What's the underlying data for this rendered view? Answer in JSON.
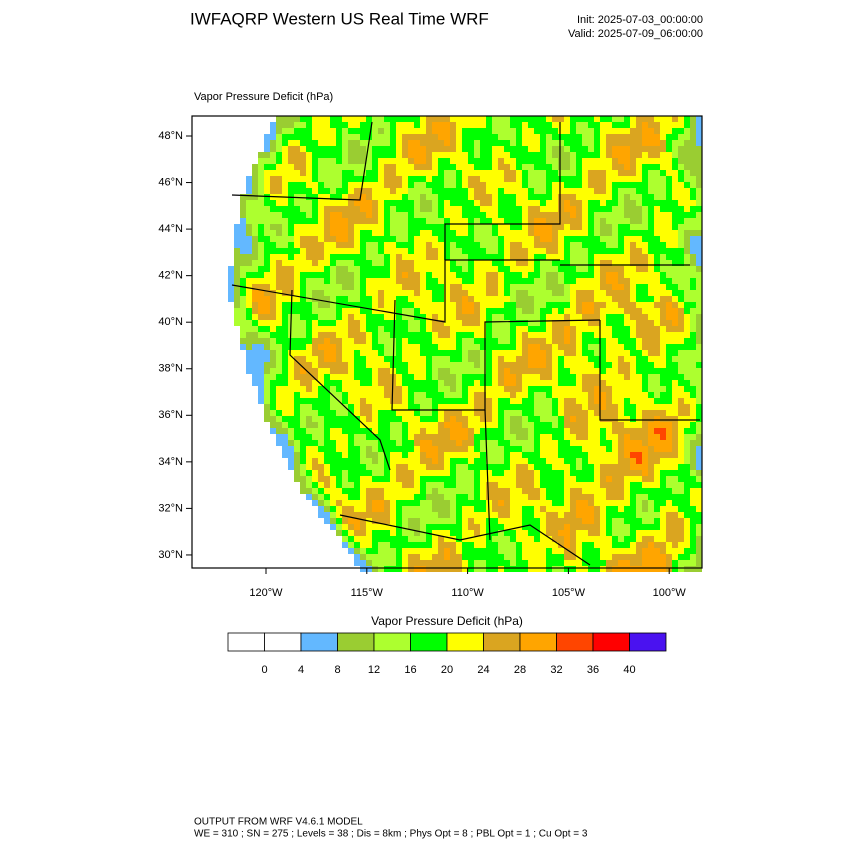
{
  "header": {
    "title": "IWFAQRP Western US Real Time WRF",
    "init": "Init: 2025-07-03_00:00:00",
    "valid": "Valid: 2025-07-09_06:00:00"
  },
  "map": {
    "label": "Vapor Pressure Deficit   (hPa)",
    "lat_ticks": [
      "48°N",
      "46°N",
      "44°N",
      "42°N",
      "40°N",
      "38°N",
      "36°N",
      "34°N",
      "32°N",
      "30°N"
    ],
    "lon_ticks": [
      "120°W",
      "115°W",
      "110°W",
      "105°W",
      "100°W"
    ]
  },
  "colorbar": {
    "title": "Vapor Pressure Deficit  (hPa)",
    "colors": [
      "#ffffff",
      "#ffffff",
      "#63b8ff",
      "#9acd32",
      "#adff2f",
      "#00ff00",
      "#ffff00",
      "#daa520",
      "#ffa500",
      "#ff4500",
      "#ff0000",
      "#4a12f0"
    ],
    "labels": [
      "0",
      "4",
      "8",
      "12",
      "16",
      "20",
      "24",
      "28",
      "32",
      "36",
      "40"
    ]
  },
  "footer": {
    "line1": "OUTPUT FROM WRF V4.6.1 MODEL",
    "line2": "WE = 310 ; SN = 275 ; Levels = 38 ; Dis = 8km ; Phys Opt = 8 ; PBL Opt = 1 ; Cu Opt = 3"
  }
}
